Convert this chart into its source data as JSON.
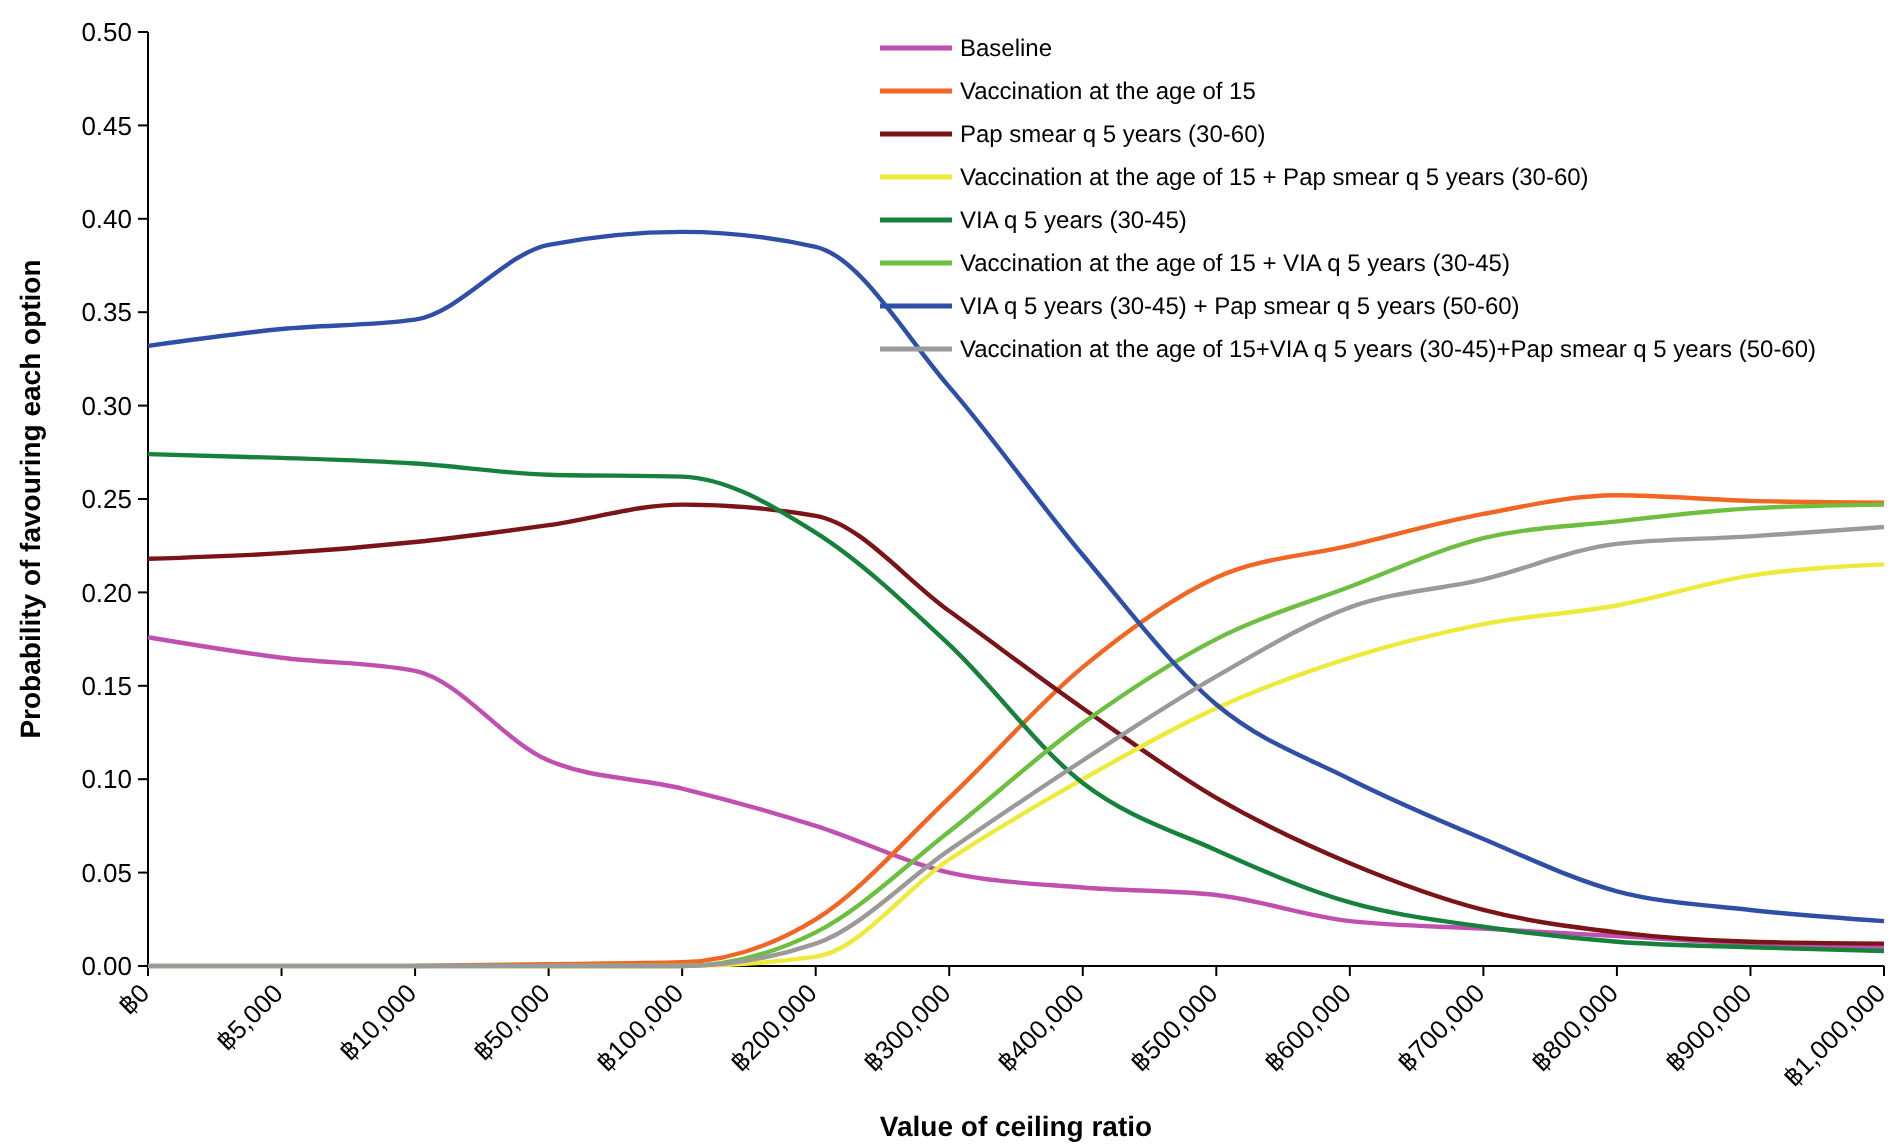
{
  "chart_data": {
    "type": "line",
    "xlabel": "Value of ceiling ratio",
    "ylabel": "Probability of favouring each option",
    "categories": [
      "฿0",
      "฿5,000",
      "฿10,000",
      "฿50,000",
      "฿100,000",
      "฿200,000",
      "฿300,000",
      "฿400,000",
      "฿500,000",
      "฿600,000",
      "฿700,000",
      "฿800,000",
      "฿900,000",
      "฿1,000,000"
    ],
    "ylim": [
      0,
      0.5
    ],
    "yticks": [
      {
        "value": 0,
        "label": "0.00"
      },
      {
        "value": 0.05,
        "label": "0.05"
      },
      {
        "value": 0.1,
        "label": "0.10"
      },
      {
        "value": 0.15,
        "label": "0.15"
      },
      {
        "value": 0.2,
        "label": "0.20"
      },
      {
        "value": 0.25,
        "label": "0.25"
      },
      {
        "value": 0.3,
        "label": "0.30"
      },
      {
        "value": 0.35,
        "label": "0.35"
      },
      {
        "value": 0.4,
        "label": "0.40"
      },
      {
        "value": 0.45,
        "label": "0.45"
      },
      {
        "value": 0.5,
        "label": "0.50"
      }
    ],
    "grid": false,
    "legend": "top right",
    "marker": "none",
    "line_style": "solid",
    "series": [
      {
        "name": "Baseline",
        "color": "#c04fb0",
        "values": [
          0.176,
          0.165,
          0.158,
          0.11,
          0.095,
          0.075,
          0.05,
          0.042,
          0.038,
          0.024,
          0.02,
          0.016,
          0.012,
          0.01
        ]
      },
      {
        "name": "Vaccination at the age of 15",
        "color": "#f26522",
        "values": [
          null,
          null,
          0,
          0.001,
          0.002,
          0.025,
          0.09,
          0.16,
          0.208,
          0.225,
          0.242,
          0.252,
          0.249,
          0.248
        ]
      },
      {
        "name": "Pap smear q 5 years (30-60)",
        "color": "#7b1416",
        "values": [
          0.218,
          0.221,
          0.227,
          0.236,
          0.247,
          0.241,
          0.19,
          0.138,
          0.09,
          0.055,
          0.03,
          0.018,
          0.013,
          0.012
        ]
      },
      {
        "name": "Vaccination at the age of 15 + Pap smear q 5 years (30-60)",
        "color": "#eeea3a",
        "values": [
          null,
          null,
          null,
          0,
          0,
          0.005,
          0.057,
          0.1,
          0.138,
          0.165,
          0.183,
          0.193,
          0.209,
          0.215
        ]
      },
      {
        "name": "VIA q 5 years (30-45)",
        "color": "#16813a",
        "values": [
          0.274,
          0.272,
          0.269,
          0.263,
          0.262,
          0.232,
          0.172,
          0.098,
          0.062,
          0.034,
          0.021,
          0.013,
          0.01,
          0.008
        ]
      },
      {
        "name": "Vaccination at the age of 15 + VIA q 5 years (30-45)",
        "color": "#6cbf3f",
        "values": [
          0,
          0,
          0,
          0,
          0,
          0.018,
          0.072,
          0.13,
          0.175,
          0.203,
          0.229,
          0.238,
          0.245,
          0.247
        ]
      },
      {
        "name": "VIA q 5 years (30-45) + Pap smear q 5 years (50-60)",
        "color": "#2e4fa8",
        "values": [
          0.332,
          0.341,
          0.346,
          0.386,
          0.393,
          0.385,
          0.31,
          0.22,
          0.14,
          0.1,
          0.068,
          0.04,
          0.03,
          0.024
        ]
      },
      {
        "name": "Vaccination at the age of 15+VIA q 5 years (30-45)+Pap smear q 5 years (50-60)",
        "color": "#9a9a9a",
        "values": [
          0,
          0,
          0,
          0,
          0,
          0.012,
          0.062,
          0.11,
          0.155,
          0.192,
          0.207,
          0.226,
          0.23,
          0.235
        ]
      }
    ]
  }
}
